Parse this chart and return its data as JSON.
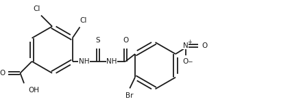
{
  "bg_color": "#ffffff",
  "line_color": "#1a1a1a",
  "line_width": 1.3,
  "font_size": 7.5,
  "fig_width": 4.42,
  "fig_height": 1.58,
  "dpi": 100,
  "xlim": [
    0,
    14
  ],
  "ylim": [
    0,
    5
  ]
}
